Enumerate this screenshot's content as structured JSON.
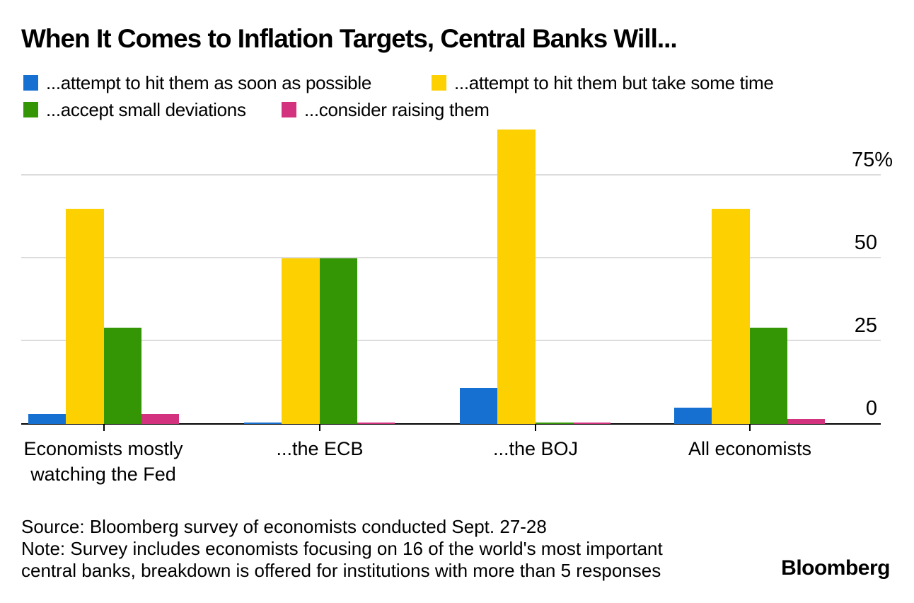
{
  "title": "When It Comes to Inflation Targets, Central Banks Will...",
  "chart_data": {
    "type": "bar",
    "title": "When It Comes to Inflation Targets, Central Banks Will...",
    "categories": [
      "Economists mostly\nwatching the Fed",
      "...the ECB",
      "...the BOJ",
      "All economists"
    ],
    "series": [
      {
        "name": "...attempt to hit them as soon as possible",
        "color": "#1670d2",
        "values": [
          3,
          0.5,
          11,
          5
        ]
      },
      {
        "name": "...attempt to hit them but take some time",
        "color": "#fdd002",
        "values": [
          65,
          50,
          89,
          65
        ]
      },
      {
        "name": "...accept small deviations",
        "color": "#349605",
        "values": [
          29,
          50,
          0.5,
          29
        ]
      },
      {
        "name": "...consider raising them",
        "color": "#d3327e",
        "values": [
          3,
          0.5,
          0.5,
          1.5
        ]
      }
    ],
    "unit": "%",
    "ylim": [
      0,
      92
    ],
    "yticks": [
      {
        "value": 0,
        "label": "0"
      },
      {
        "value": 25,
        "label": "25"
      },
      {
        "value": 50,
        "label": "50"
      },
      {
        "value": 75,
        "label": "75%"
      }
    ],
    "legend_position": "top-left",
    "grid": "horizontal",
    "axis_label_side": "right"
  },
  "footer": {
    "source": "Source: Bloomberg survey of economists conducted Sept. 27-28",
    "note": "Note: Survey includes economists focusing on 16 of the world's most important\ncentral banks, breakdown is offered for institutions with more than 5 responses",
    "brand": "Bloomberg"
  }
}
